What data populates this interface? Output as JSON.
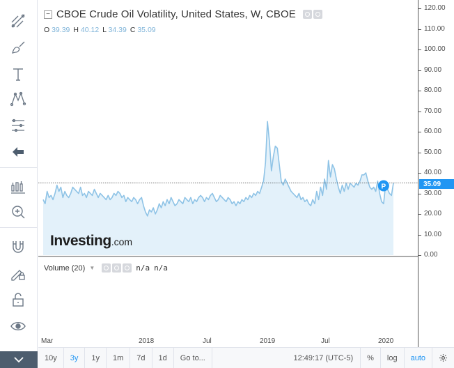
{
  "chart_title": "CBOE Crude Oil Volatility, United States, W, CBOE",
  "collapse_symbol": "−",
  "ohlc": {
    "o_key": "O",
    "o_val": "39.39",
    "h_key": "H",
    "h_val": "40.12",
    "l_key": "L",
    "l_val": "34.39",
    "c_key": "C",
    "c_val": "35.09"
  },
  "last_price": "35.09",
  "marker_letter": "P",
  "watermark": {
    "brand": "Investing",
    "suffix": ".com"
  },
  "volume": {
    "label": "Volume (20)",
    "na1": "n/a",
    "na2": "n/a"
  },
  "price_axis": [
    "120.00",
    "110.00",
    "100.00",
    "90.00",
    "80.00",
    "70.00",
    "60.00",
    "50.00",
    "40.00",
    "30.00",
    "20.00",
    "10.00",
    "0.00"
  ],
  "date_axis": [
    "Mar",
    "2018",
    "Jul",
    "2019",
    "Jul",
    "2020"
  ],
  "bottom_bar": {
    "ranges": [
      "10y",
      "3y",
      "1y",
      "1m",
      "7d",
      "1d"
    ],
    "active_range": "3y",
    "goto": "Go to...",
    "time": "12:49:17 (UTC-5)",
    "percent": "%",
    "log": "log",
    "auto": "auto"
  },
  "colors": {
    "line": "#8ec3e6",
    "fill": "#e3f1fa",
    "accent": "#2196f3"
  },
  "chart_data": {
    "type": "area",
    "title": "CBOE Crude Oil Volatility, United States, W, CBOE",
    "xlabel": "",
    "ylabel": "",
    "ylim": [
      0,
      120
    ],
    "x_ticks": [
      "Mar",
      "2018",
      "Jul",
      "2019",
      "Jul",
      "2020"
    ],
    "y_ticks": [
      0,
      10,
      20,
      30,
      40,
      50,
      60,
      70,
      80,
      90,
      100,
      110,
      120
    ],
    "last_value": 35.09,
    "series": [
      {
        "name": "CBOE Crude Oil Volatility",
        "values": [
          27,
          25,
          31,
          28,
          29,
          27,
          30,
          34,
          31,
          33,
          28,
          31,
          29,
          28,
          30,
          33,
          32,
          31,
          30,
          33,
          29,
          30,
          28,
          31,
          30,
          29,
          32,
          30,
          28,
          30,
          29,
          28,
          27,
          29,
          27,
          28,
          30,
          29,
          31,
          30,
          28,
          29,
          26,
          28,
          27,
          26,
          28,
          27,
          25,
          27,
          28,
          24,
          21,
          19,
          22,
          21,
          23,
          20,
          22,
          25,
          23,
          26,
          24,
          27,
          25,
          28,
          26,
          24,
          25,
          27,
          26,
          25,
          28,
          27,
          26,
          28,
          25,
          27,
          26,
          28,
          29,
          28,
          26,
          28,
          27,
          29,
          30,
          28,
          26,
          27,
          29,
          28,
          27,
          26,
          28,
          27,
          25,
          26,
          24,
          26,
          25,
          27,
          26,
          28,
          27,
          29,
          28,
          30,
          29,
          31,
          30,
          33,
          36,
          45,
          65,
          55,
          41,
          48,
          53,
          52,
          44,
          36,
          34,
          37,
          35,
          33,
          31,
          30,
          29,
          28,
          30,
          27,
          28,
          26,
          27,
          25,
          24,
          27,
          25,
          31,
          27,
          33,
          29,
          37,
          32,
          46,
          38,
          44,
          42,
          37,
          33,
          30,
          34,
          31,
          35,
          32,
          35,
          34,
          33,
          35,
          34,
          36,
          39,
          39,
          40,
          36,
          33,
          32,
          33,
          31,
          36,
          30,
          26,
          25,
          34,
          32,
          30,
          29,
          35
        ]
      }
    ]
  }
}
